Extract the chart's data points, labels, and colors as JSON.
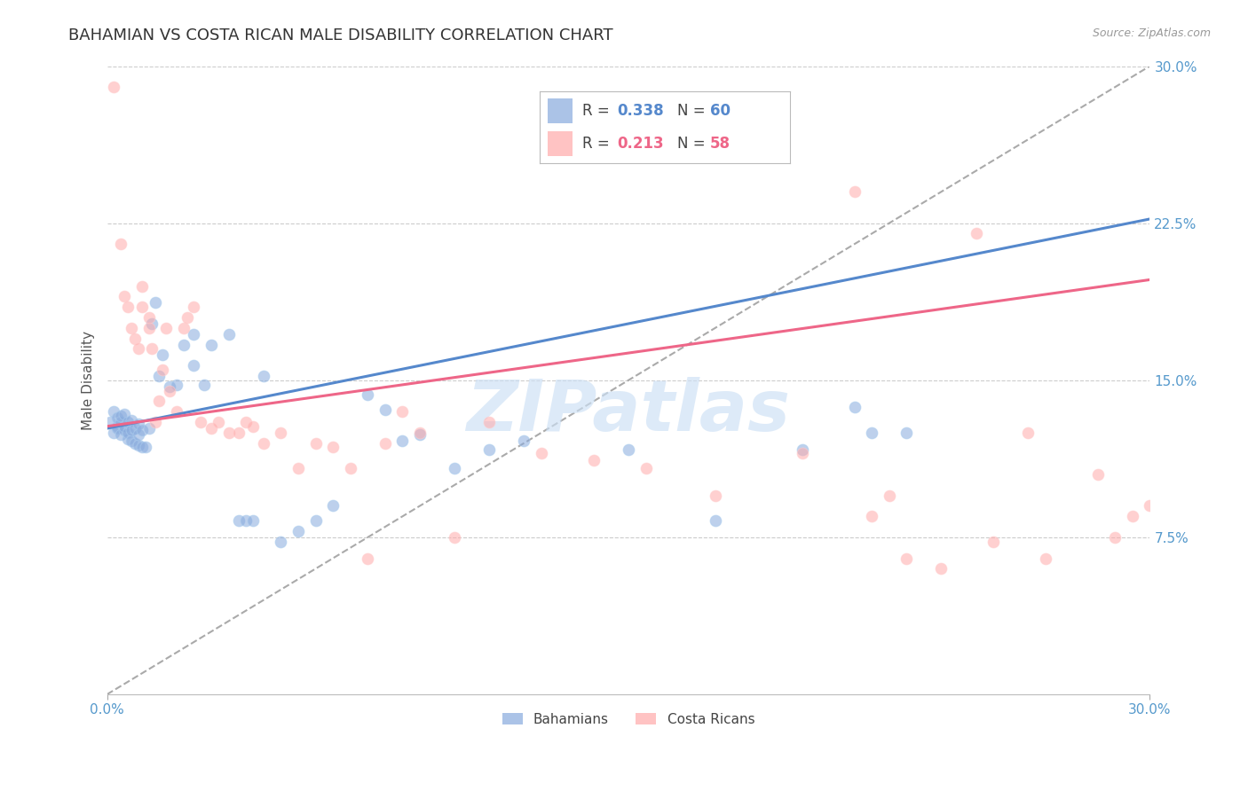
{
  "title": "BAHAMIAN VS COSTA RICAN MALE DISABILITY CORRELATION CHART",
  "source": "Source: ZipAtlas.com",
  "ylabel": "Male Disability",
  "xlim": [
    0.0,
    0.3
  ],
  "ylim": [
    0.0,
    0.3
  ],
  "ytick_positions": [
    0.075,
    0.15,
    0.225,
    0.3
  ],
  "ytick_labels": [
    "7.5%",
    "15.0%",
    "22.5%",
    "30.0%"
  ],
  "background_color": "#ffffff",
  "watermark_text": "ZIPatlas",
  "legend_blue_r": "0.338",
  "legend_blue_n": "60",
  "legend_pink_r": "0.213",
  "legend_pink_n": "58",
  "blue_scatter_color": "#88aadd",
  "pink_scatter_color": "#ffaaaa",
  "trendline_blue_color": "#5588cc",
  "trendline_pink_color": "#ee6688",
  "dash_color": "#aaaaaa",
  "tick_color": "#5599cc",
  "grid_color": "#cccccc",
  "title_color": "#333333",
  "source_color": "#999999",
  "ylabel_color": "#555555",
  "blue_x": [
    0.001,
    0.002,
    0.002,
    0.003,
    0.003,
    0.003,
    0.004,
    0.004,
    0.004,
    0.005,
    0.005,
    0.005,
    0.006,
    0.006,
    0.006,
    0.007,
    0.007,
    0.007,
    0.008,
    0.008,
    0.009,
    0.009,
    0.009,
    0.01,
    0.01,
    0.011,
    0.012,
    0.013,
    0.014,
    0.015,
    0.016,
    0.018,
    0.02,
    0.022,
    0.025,
    0.025,
    0.028,
    0.03,
    0.035,
    0.038,
    0.04,
    0.042,
    0.045,
    0.05,
    0.055,
    0.06,
    0.065,
    0.075,
    0.08,
    0.085,
    0.09,
    0.1,
    0.11,
    0.12,
    0.15,
    0.175,
    0.2,
    0.215,
    0.22,
    0.23
  ],
  "blue_y": [
    0.13,
    0.125,
    0.135,
    0.128,
    0.127,
    0.132,
    0.124,
    0.13,
    0.133,
    0.126,
    0.128,
    0.134,
    0.122,
    0.125,
    0.13,
    0.121,
    0.126,
    0.131,
    0.12,
    0.127,
    0.119,
    0.124,
    0.129,
    0.118,
    0.126,
    0.118,
    0.127,
    0.177,
    0.187,
    0.152,
    0.162,
    0.147,
    0.148,
    0.167,
    0.172,
    0.157,
    0.148,
    0.167,
    0.172,
    0.083,
    0.083,
    0.083,
    0.152,
    0.073,
    0.078,
    0.083,
    0.09,
    0.143,
    0.136,
    0.121,
    0.124,
    0.108,
    0.117,
    0.121,
    0.117,
    0.083,
    0.117,
    0.137,
    0.125,
    0.125
  ],
  "pink_x": [
    0.002,
    0.004,
    0.005,
    0.006,
    0.007,
    0.008,
    0.009,
    0.01,
    0.01,
    0.012,
    0.012,
    0.013,
    0.014,
    0.015,
    0.016,
    0.017,
    0.018,
    0.02,
    0.022,
    0.023,
    0.025,
    0.027,
    0.03,
    0.032,
    0.035,
    0.038,
    0.04,
    0.042,
    0.045,
    0.05,
    0.055,
    0.06,
    0.065,
    0.07,
    0.075,
    0.08,
    0.085,
    0.09,
    0.1,
    0.11,
    0.125,
    0.14,
    0.155,
    0.175,
    0.2,
    0.215,
    0.22,
    0.225,
    0.23,
    0.24,
    0.25,
    0.255,
    0.265,
    0.27,
    0.285,
    0.29,
    0.295,
    0.3
  ],
  "pink_y": [
    0.29,
    0.215,
    0.19,
    0.185,
    0.175,
    0.17,
    0.165,
    0.185,
    0.195,
    0.175,
    0.18,
    0.165,
    0.13,
    0.14,
    0.155,
    0.175,
    0.145,
    0.135,
    0.175,
    0.18,
    0.185,
    0.13,
    0.127,
    0.13,
    0.125,
    0.125,
    0.13,
    0.128,
    0.12,
    0.125,
    0.108,
    0.12,
    0.118,
    0.108,
    0.065,
    0.12,
    0.135,
    0.125,
    0.075,
    0.13,
    0.115,
    0.112,
    0.108,
    0.095,
    0.115,
    0.24,
    0.085,
    0.095,
    0.065,
    0.06,
    0.22,
    0.073,
    0.125,
    0.065,
    0.105,
    0.075,
    0.085,
    0.09
  ]
}
